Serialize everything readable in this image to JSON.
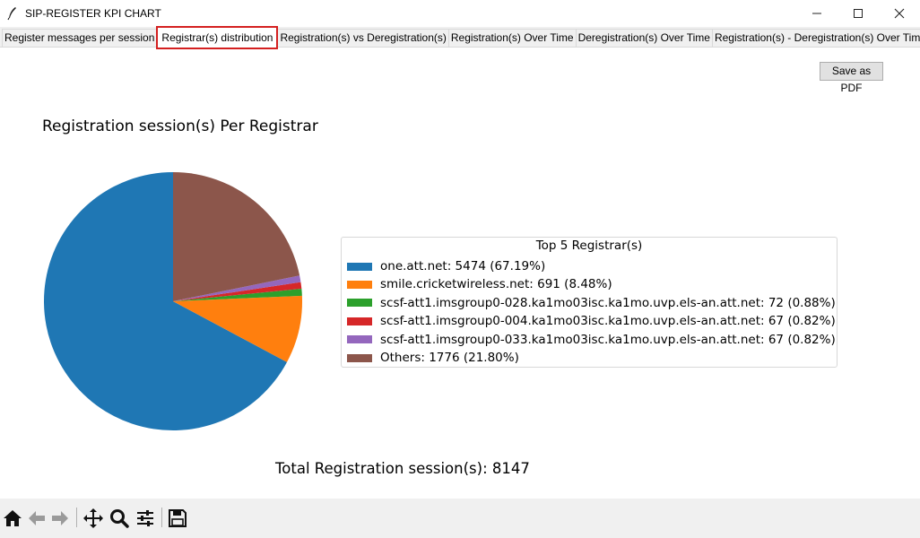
{
  "window": {
    "title": "SIP-REGISTER KPI CHART",
    "icons": [
      "feather-icon",
      "minimize-icon",
      "maximize-icon",
      "close-icon"
    ]
  },
  "tabs": [
    {
      "label": "Register messages per session",
      "active": false
    },
    {
      "label": "Registrar(s) distribution",
      "active": true
    },
    {
      "label": "Registration(s) vs Deregistration(s)",
      "active": false
    },
    {
      "label": "Registration(s) Over Time",
      "active": false
    },
    {
      "label": "Deregistration(s) Over Time",
      "active": false
    },
    {
      "label": "Registration(s) - Deregistration(s) Over Time",
      "active": false
    }
  ],
  "save_pdf_label": "Save as PDF",
  "chart_data": {
    "type": "pie",
    "title": "Registration session(s) Per Registrar",
    "legend_title": "Top 5 Registrar(s)",
    "legend_placement": "right",
    "slices": [
      {
        "label": "one.att.net: 5474 (67.19%)",
        "value": 5474,
        "color": "#1f77b4"
      },
      {
        "label": "smile.cricketwireless.net: 691 (8.48%)",
        "value": 691,
        "color": "#ff7f0e"
      },
      {
        "label": "scsf-att1.imsgroup0-028.ka1mo03isc.ka1mo.uvp.els-an.att.net: 72 (0.88%)",
        "value": 72,
        "color": "#2ca02c"
      },
      {
        "label": "scsf-att1.imsgroup0-004.ka1mo03isc.ka1mo.uvp.els-an.att.net: 67 (0.82%)",
        "value": 67,
        "color": "#d62728"
      },
      {
        "label": "scsf-att1.imsgroup0-033.ka1mo03isc.ka1mo.uvp.els-an.att.net: 67 (0.82%)",
        "value": 67,
        "color": "#9467bd"
      },
      {
        "label": "Others: 1776 (21.80%)",
        "value": 1776,
        "color": "#8c564b"
      }
    ],
    "total_label": "Total Registration session(s): 8147"
  },
  "toolbar": {
    "tools": [
      "home-icon",
      "back-arrow-icon",
      "forward-arrow-icon",
      "pan-move-icon",
      "zoom-magnifier-icon",
      "configure-sliders-icon",
      "save-floppy-icon"
    ]
  }
}
